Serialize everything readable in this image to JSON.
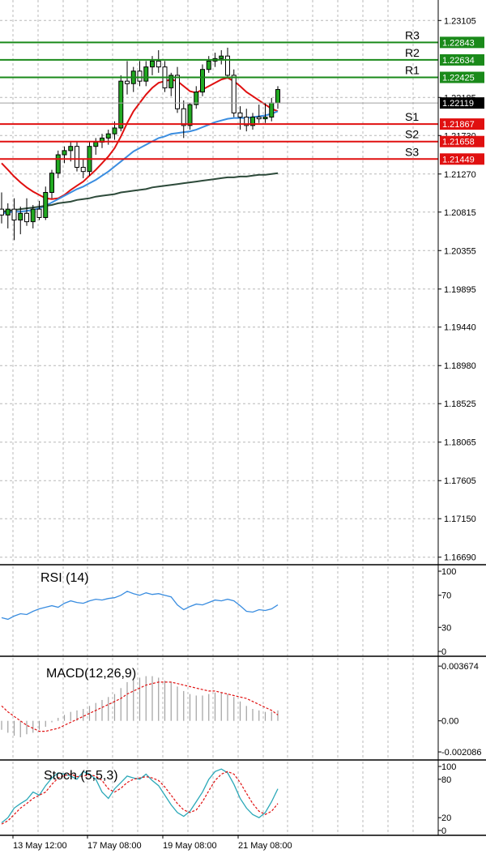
{
  "chart_data": {
    "type": "candlestick",
    "symbol": "EURUSD",
    "price_axis": {
      "range": [
        1.166,
        1.2335
      ],
      "ticks": [
        1.23105,
        1.22185,
        1.2173,
        1.2127,
        1.20815,
        1.20355,
        1.19895,
        1.1944,
        1.1898,
        1.18525,
        1.18065,
        1.17605,
        1.1715,
        1.1669
      ]
    },
    "current_price": {
      "value": 1.22119,
      "label": "1.22119",
      "color": "#000000"
    },
    "levels": [
      {
        "name": "R3",
        "value": 1.22843,
        "label": "1.22843",
        "color": "#1a8a1a"
      },
      {
        "name": "R2",
        "value": 1.22634,
        "label": "1.22634",
        "color": "#1a8a1a"
      },
      {
        "name": "R1",
        "value": 1.22425,
        "label": "1.22425",
        "color": "#1a8a1a"
      },
      {
        "name": "S1",
        "value": 1.21867,
        "label": "1.21867",
        "color": "#e01010"
      },
      {
        "name": "S2",
        "value": 1.21658,
        "label": "1.21658",
        "color": "#e01010"
      },
      {
        "name": "S3",
        "value": 1.21449,
        "label": "1.21449",
        "color": "#e01010"
      }
    ],
    "time_axis": [
      "13 May 12:00",
      "17 May 08:00",
      "19 May 08:00",
      "21 May 08:00"
    ],
    "candles": [
      [
        1.2085,
        1.2105,
        1.2068,
        1.2078
      ],
      [
        1.2078,
        1.2092,
        1.2062,
        1.2085
      ],
      [
        1.2085,
        1.2098,
        1.2048,
        1.2072
      ],
      [
        1.2072,
        1.2088,
        1.2055,
        1.208
      ],
      [
        1.208,
        1.2098,
        1.2065,
        1.207
      ],
      [
        1.207,
        1.209,
        1.2062,
        1.2085
      ],
      [
        1.2085,
        1.2095,
        1.2072,
        1.2075
      ],
      [
        1.2075,
        1.2112,
        1.2072,
        1.2105
      ],
      [
        1.2105,
        1.2132,
        1.2098,
        1.2128
      ],
      [
        1.2128,
        1.2155,
        1.2122,
        1.215
      ],
      [
        1.215,
        1.216,
        1.214,
        1.2155
      ],
      [
        1.2155,
        1.2165,
        1.2142,
        1.216
      ],
      [
        1.216,
        1.2165,
        1.213,
        1.2135
      ],
      [
        1.2135,
        1.2145,
        1.2122,
        1.213
      ],
      [
        1.213,
        1.2165,
        1.2125,
        1.216
      ],
      [
        1.216,
        1.217,
        1.215,
        1.2165
      ],
      [
        1.2165,
        1.2175,
        1.2158,
        1.217
      ],
      [
        1.217,
        1.218,
        1.2162,
        1.2175
      ],
      [
        1.2175,
        1.219,
        1.2168,
        1.2182
      ],
      [
        1.2182,
        1.2245,
        1.2178,
        1.2238
      ],
      [
        1.2238,
        1.2262,
        1.2222,
        1.2235
      ],
      [
        1.2235,
        1.2255,
        1.2225,
        1.225
      ],
      [
        1.225,
        1.2262,
        1.2232,
        1.2238
      ],
      [
        1.2238,
        1.2262,
        1.2232,
        1.2255
      ],
      [
        1.2255,
        1.2268,
        1.2245,
        1.2262
      ],
      [
        1.2262,
        1.2275,
        1.2248,
        1.2255
      ],
      [
        1.2255,
        1.2262,
        1.2225,
        1.223
      ],
      [
        1.223,
        1.2248,
        1.222,
        1.2245
      ],
      [
        1.2245,
        1.2255,
        1.22,
        1.2205
      ],
      [
        1.2205,
        1.2215,
        1.217,
        1.2185
      ],
      [
        1.2185,
        1.2212,
        1.218,
        1.221
      ],
      [
        1.221,
        1.2232,
        1.2205,
        1.2225
      ],
      [
        1.2225,
        1.2258,
        1.222,
        1.2252
      ],
      [
        1.2252,
        1.2268,
        1.2248,
        1.2262
      ],
      [
        1.2262,
        1.2272,
        1.2255,
        1.2265
      ],
      [
        1.2265,
        1.2275,
        1.2258,
        1.2268
      ],
      [
        1.2268,
        1.2278,
        1.2242,
        1.2245
      ],
      [
        1.2245,
        1.2252,
        1.2195,
        1.22
      ],
      [
        1.22,
        1.2208,
        1.218,
        1.2195
      ],
      [
        1.2195,
        1.2205,
        1.2178,
        1.2185
      ],
      [
        1.2185,
        1.22,
        1.218,
        1.2195
      ],
      [
        1.2195,
        1.221,
        1.2188,
        1.2193
      ],
      [
        1.2193,
        1.2212,
        1.2188,
        1.2195
      ],
      [
        1.2195,
        1.2218,
        1.219,
        1.2212
      ],
      [
        1.2212,
        1.2232,
        1.2205,
        1.2228
      ]
    ],
    "moving_averages": [
      {
        "color": "#e01010",
        "values": [
          1.214,
          1.2132,
          1.2124,
          1.2117,
          1.2111,
          1.2106,
          1.2102,
          1.2098,
          1.2097,
          1.2098,
          1.2102,
          1.2108,
          1.2113,
          1.2118,
          1.2125,
          1.2132,
          1.214,
          1.2148,
          1.2158,
          1.2172,
          1.2188,
          1.2202,
          1.2212,
          1.2222,
          1.223,
          1.2236,
          1.2238,
          1.224,
          1.2238,
          1.2232,
          1.2226,
          1.2224,
          1.2228,
          1.2232,
          1.2236,
          1.224,
          1.2242,
          1.2238,
          1.2232,
          1.2225,
          1.222,
          1.2215,
          1.221,
          1.2205,
          1.2202
        ]
      },
      {
        "color": "#3a8de0",
        "values": [
          1.208,
          1.2081,
          1.2082,
          1.2082,
          1.2083,
          1.2084,
          1.2086,
          1.2089,
          1.2093,
          1.2097,
          1.2101,
          1.2105,
          1.2109,
          1.2112,
          1.2116,
          1.212,
          1.2125,
          1.213,
          1.2136,
          1.2142,
          1.2148,
          1.2154,
          1.2158,
          1.2162,
          1.2166,
          1.217,
          1.2172,
          1.2175,
          1.2176,
          1.2177,
          1.2178,
          1.218,
          1.2183,
          1.2186,
          1.2189,
          1.2191,
          1.2193,
          1.2194,
          1.2194,
          1.2194,
          1.2195,
          1.2196,
          1.2197,
          1.2199,
          1.2202
        ]
      },
      {
        "color": "#2d4a3a",
        "values": [
          1.2082,
          1.2083,
          1.2084,
          1.2085,
          1.2086,
          1.2087,
          1.2088,
          1.2089,
          1.209,
          1.2092,
          1.2093,
          1.2094,
          1.2096,
          1.2097,
          1.2098,
          1.21,
          1.2101,
          1.2102,
          1.2103,
          1.2105,
          1.2106,
          1.2107,
          1.2108,
          1.2109,
          1.2111,
          1.2112,
          1.2113,
          1.2114,
          1.2115,
          1.2116,
          1.2117,
          1.2118,
          1.2119,
          1.212,
          1.2121,
          1.2122,
          1.2123,
          1.2123,
          1.2124,
          1.2124,
          1.2125,
          1.2126,
          1.2126,
          1.2127,
          1.2128
        ]
      }
    ],
    "rsi": {
      "title": "RSI (14)",
      "ticks": [
        100,
        70,
        30,
        0
      ],
      "range": [
        0,
        100
      ],
      "color": "#3a8de0",
      "values": [
        42,
        40,
        44,
        47,
        46,
        50,
        53,
        55,
        57,
        55,
        60,
        63,
        61,
        60,
        63,
        65,
        64,
        66,
        67,
        70,
        75,
        72,
        70,
        73,
        71,
        72,
        70,
        68,
        58,
        52,
        56,
        59,
        58,
        61,
        64,
        63,
        65,
        63,
        57,
        50,
        49,
        52,
        51,
        53,
        58
      ]
    },
    "macd": {
      "title": "MACD(12,26,9)",
      "ticks": [
        0.003674,
        0.0,
        -0.002086
      ],
      "tick_labels": [
        "0.003674",
        "0.00",
        "-0.002086"
      ],
      "range": [
        -0.0023,
        0.0039
      ],
      "signal_color": "#e01010",
      "histogram_color": "#a0a0a0",
      "histogram": [
        -0.0006,
        -0.0008,
        -0.001,
        -0.0011,
        -0.0009,
        -0.0008,
        -0.0006,
        -0.0004,
        -0.0001,
        0.0002,
        0.0004,
        0.0006,
        0.0007,
        0.0008,
        0.001,
        0.0012,
        0.0014,
        0.0016,
        0.0018,
        0.0022,
        0.0026,
        0.0028,
        0.0029,
        0.003,
        0.003,
        0.0029,
        0.0027,
        0.0026,
        0.0023,
        0.002,
        0.0018,
        0.0017,
        0.0017,
        0.0018,
        0.0019,
        0.0019,
        0.0018,
        0.0016,
        0.0013,
        0.001,
        0.0008,
        0.0007,
        0.0006,
        0.0006,
        0.0007
      ],
      "signal": [
        0.001,
        0.0006,
        0.0003,
        0.0,
        -0.0003,
        -0.0005,
        -0.0007,
        -0.0007,
        -0.0006,
        -0.0005,
        -0.0003,
        -0.0001,
        0.0001,
        0.0003,
        0.0005,
        0.0007,
        0.0009,
        0.0011,
        0.0013,
        0.0015,
        0.0018,
        0.002,
        0.0022,
        0.0024,
        0.0025,
        0.0026,
        0.0026,
        0.0026,
        0.0025,
        0.0024,
        0.0023,
        0.0022,
        0.0021,
        0.002,
        0.002,
        0.0019,
        0.0018,
        0.0017,
        0.0016,
        0.0015,
        0.0013,
        0.0011,
        0.0009,
        0.0007,
        0.0004
      ]
    },
    "stoch": {
      "title": "Stoch (5,5,3)",
      "ticks": [
        100,
        80,
        20,
        0
      ],
      "range": [
        0,
        100
      ],
      "main_color": "#2aa8b8",
      "signal_color": "#e01010",
      "main": [
        12,
        20,
        35,
        42,
        48,
        60,
        55,
        70,
        82,
        90,
        88,
        85,
        80,
        92,
        88,
        80,
        60,
        50,
        65,
        75,
        85,
        82,
        80,
        88,
        78,
        70,
        55,
        40,
        28,
        22,
        30,
        45,
        60,
        80,
        92,
        96,
        90,
        72,
        50,
        35,
        25,
        20,
        28,
        45,
        65
      ],
      "signal": [
        10,
        15,
        25,
        35,
        42,
        50,
        55,
        60,
        72,
        82,
        86,
        88,
        84,
        85,
        87,
        85,
        78,
        65,
        60,
        66,
        75,
        80,
        82,
        84,
        82,
        78,
        68,
        55,
        42,
        32,
        28,
        32,
        45,
        62,
        78,
        88,
        92,
        88,
        75,
        58,
        42,
        30,
        25,
        30,
        42
      ]
    }
  }
}
